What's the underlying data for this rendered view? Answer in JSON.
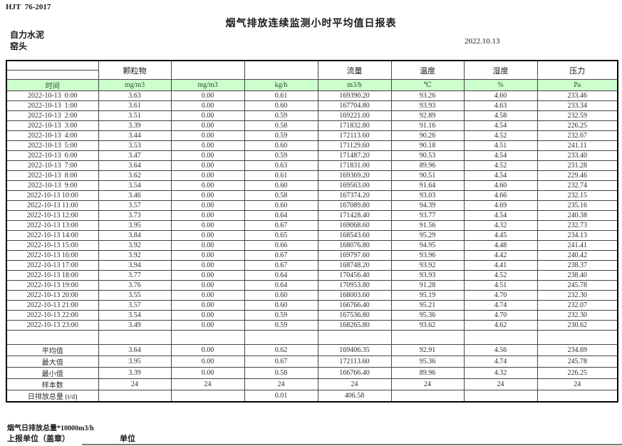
{
  "meta": {
    "standard": "HJT  76-2017",
    "title": "烟气排放连续监测小时平均值日报表",
    "company": "自力水泥",
    "location": "窑头",
    "date": "2022.10.13"
  },
  "colors": {
    "header_green": "#ccffcc"
  },
  "table": {
    "group_headers": [
      "",
      "颗粒物",
      "",
      "",
      "流量",
      "温度",
      "湿度",
      "压力"
    ],
    "unit_row": [
      "时间",
      "mg/m3",
      "mg/m3",
      "kg/h",
      "m3/h",
      "℃",
      "%",
      "Pa"
    ],
    "rows": [
      [
        "2022-10-13  0:00",
        "3.63",
        "0.00",
        "0.61",
        "169390.20",
        "93.26",
        "4.60",
        "233.46"
      ],
      [
        "2022-10-13  1:00",
        "3.61",
        "0.00",
        "0.60",
        "167704.80",
        "93.93",
        "4.63",
        "233.34"
      ],
      [
        "2022-10-13  2:00",
        "3.51",
        "0.00",
        "0.59",
        "169221.00",
        "92.89",
        "4.58",
        "232.59"
      ],
      [
        "2022-10-13  3:00",
        "3.39",
        "0.00",
        "0.58",
        "171832.80",
        "91.16",
        "4.54",
        "226.25"
      ],
      [
        "2022-10-13  4:00",
        "3.44",
        "0.00",
        "0.59",
        "172113.60",
        "90.26",
        "4.52",
        "232.67"
      ],
      [
        "2022-10-13  5:00",
        "3.53",
        "0.00",
        "0.60",
        "171129.60",
        "90.18",
        "4.51",
        "241.11"
      ],
      [
        "2022-10-13  6:00",
        "3.47",
        "0.00",
        "0.59",
        "171487.20",
        "90.53",
        "4.54",
        "233.40"
      ],
      [
        "2022-10-13  7:00",
        "3.64",
        "0.00",
        "0.63",
        "171831.00",
        "89.96",
        "4.52",
        "231.28"
      ],
      [
        "2022-10-13  8:00",
        "3.62",
        "0.00",
        "0.61",
        "169369.20",
        "90.51",
        "4.54",
        "229.46"
      ],
      [
        "2022-10-13  9:00",
        "3.54",
        "0.00",
        "0.60",
        "169563.00",
        "91.64",
        "4.60",
        "232.74"
      ],
      [
        "2022-10-13 10:00",
        "3.46",
        "0.00",
        "0.58",
        "167374.20",
        "93.03",
        "4.66",
        "232.15"
      ],
      [
        "2022-10-13 11:00",
        "3.57",
        "0.00",
        "0.60",
        "167089.80",
        "94.39",
        "4.69",
        "235.16"
      ],
      [
        "2022-10-13 12:00",
        "3.73",
        "0.00",
        "0.64",
        "171428.40",
        "93.77",
        "4.54",
        "240.38"
      ],
      [
        "2022-10-13 13:00",
        "3.95",
        "0.00",
        "0.67",
        "169068.60",
        "91.56",
        "4.32",
        "232.73"
      ],
      [
        "2022-10-13 14:00",
        "3.84",
        "0.00",
        "0.65",
        "168543.60",
        "95.29",
        "4.45",
        "234.13"
      ],
      [
        "2022-10-13 15:00",
        "3.92",
        "0.00",
        "0.66",
        "168076.80",
        "94.95",
        "4.48",
        "241.41"
      ],
      [
        "2022-10-13 16:00",
        "3.92",
        "0.00",
        "0.67",
        "169797.60",
        "93.96",
        "4.42",
        "240.42"
      ],
      [
        "2022-10-13 17:00",
        "3.94",
        "0.00",
        "0.67",
        "168748.20",
        "93.92",
        "4.41",
        "238.37"
      ],
      [
        "2022-10-13 18:00",
        "3.77",
        "0.00",
        "0.64",
        "170456.40",
        "93.93",
        "4.52",
        "238.40"
      ],
      [
        "2022-10-13 19:00",
        "3.76",
        "0.00",
        "0.64",
        "170953.80",
        "91.28",
        "4.51",
        "245.78"
      ],
      [
        "2022-10-13 20:00",
        "3.55",
        "0.00",
        "0.60",
        "168003.60",
        "95.19",
        "4.70",
        "232.30"
      ],
      [
        "2022-10-13 21:00",
        "3.57",
        "0.00",
        "0.60",
        "166766.40",
        "95.21",
        "4.74",
        "232.07"
      ],
      [
        "2022-10-13 22:00",
        "3.54",
        "0.00",
        "0.59",
        "167536.80",
        "95.36",
        "4.70",
        "232.30"
      ],
      [
        "2022-10-13 23:00",
        "3.49",
        "0.00",
        "0.59",
        "168265.80",
        "93.62",
        "4.62",
        "230.62"
      ]
    ],
    "summary": [
      {
        "label": "平均值",
        "values": [
          "3.64",
          "0.00",
          "0.62",
          "169406.35",
          "92.91",
          "4.56",
          "234.69"
        ]
      },
      {
        "label": "最大值",
        "values": [
          "3.95",
          "0.00",
          "0.67",
          "172113.60",
          "95.36",
          "4.74",
          "245.78"
        ]
      },
      {
        "label": "最小值",
        "values": [
          "3.39",
          "0.00",
          "0.58",
          "166766.40",
          "89.96",
          "4.32",
          "226.25"
        ]
      },
      {
        "label": "样本数",
        "values": [
          "24",
          "24",
          "24",
          "24",
          "24",
          "24",
          "24"
        ]
      },
      {
        "label": "日排放总量 (t/d)",
        "values": [
          "",
          "",
          "0.01",
          "406.58",
          "",
          "",
          ""
        ]
      }
    ]
  },
  "footer": {
    "note1": "烟气日排放总量*10000m3/h",
    "note2": "上报单位（盖章）",
    "note3": "单位"
  }
}
